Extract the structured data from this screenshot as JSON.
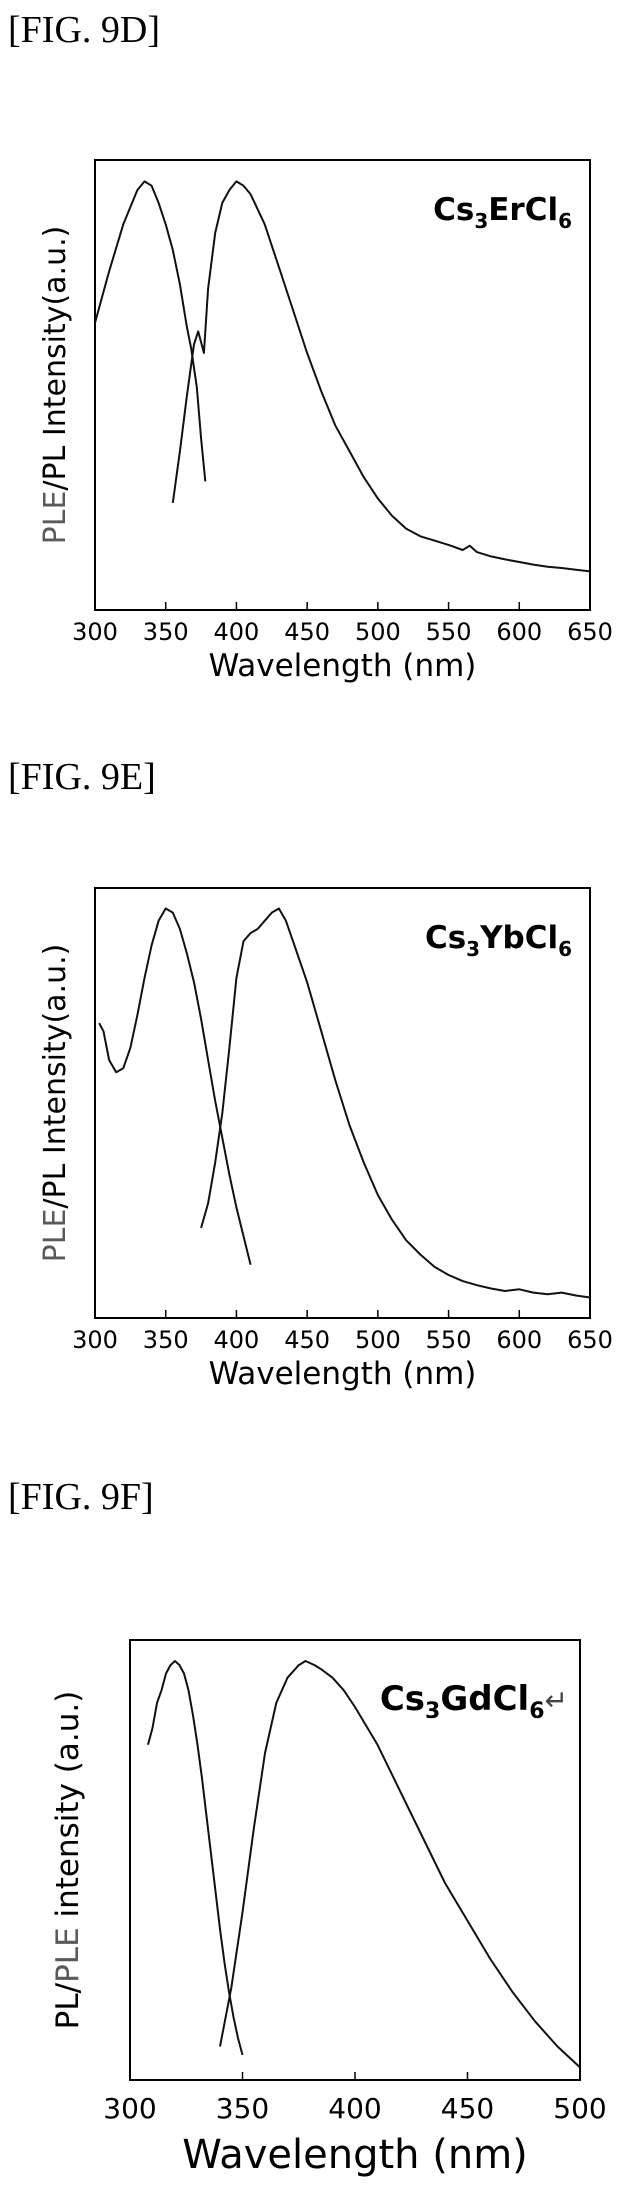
{
  "figures": [
    {
      "label": "[FIG. 9D]"
    },
    {
      "label": "[FIG. 9E]"
    },
    {
      "label": "[FIG. 9F]"
    }
  ],
  "chart_data": [
    {
      "type": "line",
      "compound": {
        "base": "Cs",
        "sub1": "3",
        "mid": "ErCl",
        "sub2": "6"
      },
      "ylabel_segments": [
        {
          "text": "PLE",
          "color": "#5a5a5a"
        },
        {
          "text": "/PL Intensity(a.u.)",
          "color": "#000000"
        }
      ],
      "xlabel": "Wavelength (nm)",
      "xlim": [
        300,
        650
      ],
      "ylim": [
        0,
        1.05
      ],
      "xticks": [
        300,
        350,
        400,
        450,
        500,
        550,
        600,
        650
      ],
      "yticks_shown": false,
      "series": [
        {
          "x": [
            300,
            310,
            320,
            330,
            335,
            340,
            345,
            350,
            355,
            360,
            365,
            368,
            372,
            375,
            378
          ],
          "y": [
            0.67,
            0.79,
            0.9,
            0.98,
            1.0,
            0.99,
            0.95,
            0.9,
            0.84,
            0.76,
            0.66,
            0.61,
            0.52,
            0.4,
            0.3
          ]
        },
        {
          "x": [
            355,
            360,
            365,
            370,
            373,
            377,
            380,
            385,
            390,
            395,
            400,
            405,
            410,
            420,
            430,
            440,
            450,
            460,
            470,
            480,
            490,
            500,
            510,
            520,
            530,
            540,
            550,
            560,
            565,
            570,
            580,
            590,
            600,
            610,
            620,
            630,
            640,
            650
          ],
          "y": [
            0.25,
            0.37,
            0.5,
            0.62,
            0.65,
            0.6,
            0.75,
            0.88,
            0.95,
            0.98,
            1.0,
            0.99,
            0.97,
            0.9,
            0.8,
            0.7,
            0.6,
            0.51,
            0.43,
            0.37,
            0.31,
            0.26,
            0.22,
            0.19,
            0.172,
            0.162,
            0.152,
            0.14,
            0.15,
            0.135,
            0.125,
            0.118,
            0.112,
            0.106,
            0.101,
            0.098,
            0.094,
            0.09
          ]
        }
      ]
    },
    {
      "type": "line",
      "compound": {
        "base": "Cs",
        "sub1": "3",
        "mid": "YbCl",
        "sub2": "6"
      },
      "ylabel_segments": [
        {
          "text": "PLE",
          "color": "#5a5a5a"
        },
        {
          "text": "/PL Intensity(a.u.)",
          "color": "#000000"
        }
      ],
      "xlabel": "Wavelength (nm)",
      "xlim": [
        300,
        650
      ],
      "ylim": [
        0,
        1.05
      ],
      "xticks": [
        300,
        350,
        400,
        450,
        500,
        550,
        600,
        650
      ],
      "yticks_shown": false,
      "series": [
        {
          "x": [
            303,
            306,
            310,
            315,
            320,
            325,
            330,
            335,
            340,
            345,
            350,
            355,
            360,
            365,
            370,
            375,
            380,
            385,
            390,
            395,
            400,
            405,
            410
          ],
          "y": [
            0.72,
            0.7,
            0.63,
            0.6,
            0.61,
            0.66,
            0.74,
            0.83,
            0.91,
            0.97,
            1.0,
            0.99,
            0.95,
            0.89,
            0.82,
            0.73,
            0.63,
            0.53,
            0.44,
            0.35,
            0.27,
            0.2,
            0.13
          ]
        },
        {
          "x": [
            375,
            380,
            385,
            390,
            395,
            400,
            405,
            410,
            415,
            420,
            425,
            430,
            435,
            440,
            450,
            460,
            470,
            480,
            490,
            500,
            510,
            520,
            530,
            540,
            550,
            560,
            570,
            580,
            590,
            600,
            610,
            620,
            630,
            640,
            650
          ],
          "y": [
            0.22,
            0.28,
            0.38,
            0.5,
            0.66,
            0.83,
            0.92,
            0.94,
            0.95,
            0.97,
            0.99,
            1.0,
            0.97,
            0.92,
            0.82,
            0.7,
            0.58,
            0.47,
            0.38,
            0.3,
            0.24,
            0.19,
            0.155,
            0.125,
            0.105,
            0.09,
            0.08,
            0.072,
            0.066,
            0.07,
            0.062,
            0.058,
            0.062,
            0.055,
            0.05
          ]
        }
      ]
    },
    {
      "type": "line",
      "compound": {
        "base": "Cs",
        "sub1": "3",
        "mid": "GdCl",
        "sub2": "6",
        "suffix": "↵"
      },
      "ylabel_segments": [
        {
          "text": "PL/",
          "color": "#000000"
        },
        {
          "text": "PLE",
          "color": "#5a5a5a"
        },
        {
          "text": " intensity (a.u.)",
          "color": "#000000"
        }
      ],
      "xlabel": "Wavelength (nm)",
      "xlim": [
        300,
        500
      ],
      "ylim": [
        0,
        1.05
      ],
      "xticks": [
        300,
        350,
        400,
        450,
        500
      ],
      "yticks_shown": false,
      "series": [
        {
          "x": [
            308,
            310,
            312,
            314,
            316,
            318,
            320,
            322,
            324,
            326,
            328,
            330,
            332,
            334,
            336,
            338,
            340,
            342,
            344,
            346,
            348,
            350
          ],
          "y": [
            0.8,
            0.84,
            0.9,
            0.93,
            0.97,
            0.99,
            1.0,
            0.99,
            0.97,
            0.93,
            0.87,
            0.8,
            0.72,
            0.63,
            0.54,
            0.45,
            0.36,
            0.28,
            0.21,
            0.15,
            0.1,
            0.06
          ]
        },
        {
          "x": [
            340,
            345,
            350,
            355,
            360,
            365,
            370,
            375,
            378,
            382,
            385,
            390,
            395,
            400,
            410,
            420,
            430,
            440,
            450,
            460,
            470,
            480,
            490,
            500
          ],
          "y": [
            0.08,
            0.22,
            0.4,
            0.6,
            0.78,
            0.9,
            0.96,
            0.99,
            1.0,
            0.99,
            0.98,
            0.96,
            0.93,
            0.89,
            0.8,
            0.69,
            0.58,
            0.47,
            0.38,
            0.29,
            0.21,
            0.14,
            0.08,
            0.03
          ]
        }
      ]
    }
  ]
}
